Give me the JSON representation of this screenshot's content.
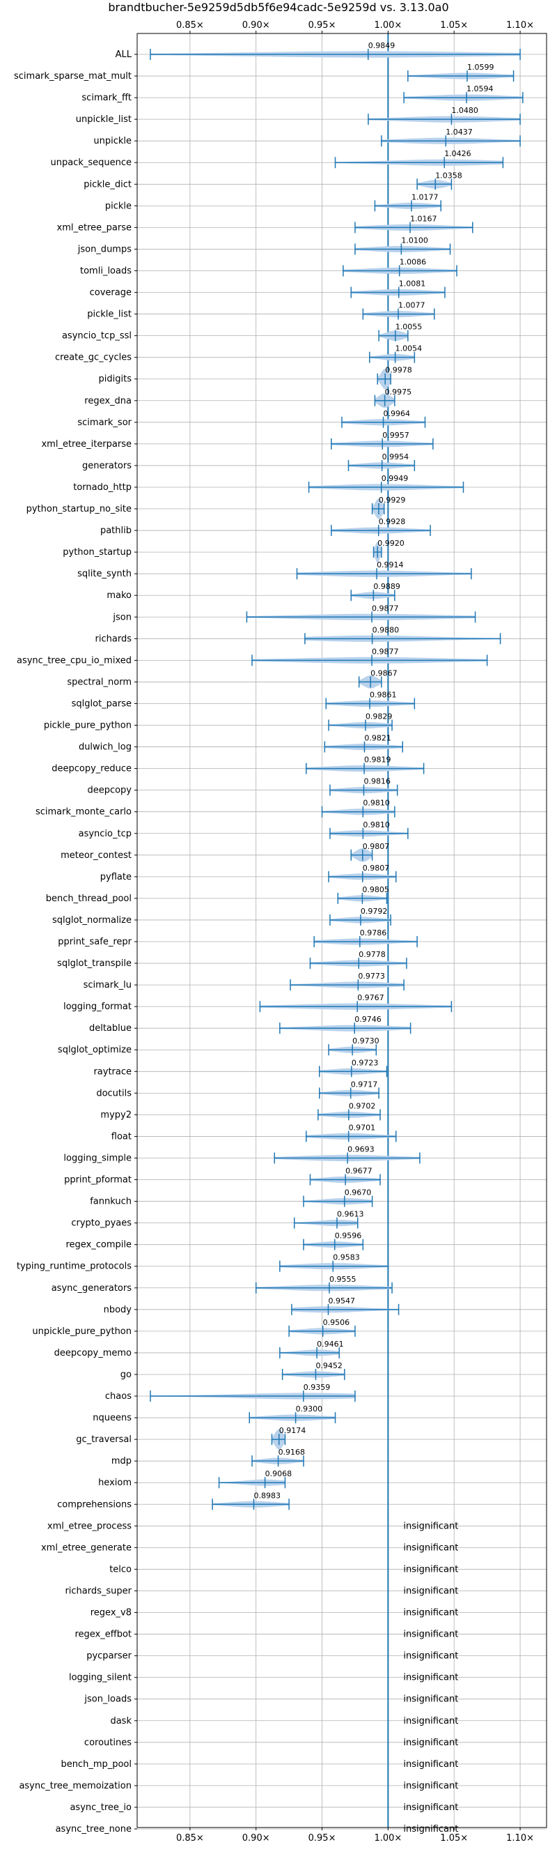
{
  "chart_data": {
    "type": "violin",
    "title": "brandtbucher-5e9259d5db5f6e94cadc-5e9259d vs. 3.13.0a0",
    "xlim": [
      0.81,
      1.12
    ],
    "xticks": [
      0.85,
      0.9,
      0.95,
      1.0,
      1.05,
      1.1
    ],
    "xtick_labels": [
      "0.85×",
      "0.90×",
      "0.95×",
      "1.00×",
      "1.05×",
      "1.10×"
    ],
    "reference_line": 1.0,
    "grid": true,
    "accent_color": "#1f77b4",
    "violin_color": "#b9d2ec",
    "insignificant_label": "insignificant",
    "benchmarks": [
      {
        "name": "ALL",
        "value": 0.9849,
        "label": "0.9849",
        "min": 0.82,
        "max": 1.1
      },
      {
        "name": "scimark_sparse_mat_mult",
        "value": 1.0599,
        "label": "1.0599",
        "min": 1.015,
        "max": 1.095
      },
      {
        "name": "scimark_fft",
        "value": 1.0594,
        "label": "1.0594",
        "min": 1.012,
        "max": 1.102
      },
      {
        "name": "unpickle_list",
        "value": 1.048,
        "label": "1.0480",
        "min": 0.985,
        "max": 1.1
      },
      {
        "name": "unpickle",
        "value": 1.0437,
        "label": "1.0437",
        "min": 0.995,
        "max": 1.1
      },
      {
        "name": "unpack_sequence",
        "value": 1.0426,
        "label": "1.0426",
        "min": 0.96,
        "max": 1.087
      },
      {
        "name": "pickle_dict",
        "value": 1.0358,
        "label": "1.0358",
        "min": 1.022,
        "max": 1.048
      },
      {
        "name": "pickle",
        "value": 1.0177,
        "label": "1.0177",
        "min": 0.99,
        "max": 1.04
      },
      {
        "name": "xml_etree_parse",
        "value": 1.0167,
        "label": "1.0167",
        "min": 0.975,
        "max": 1.064
      },
      {
        "name": "json_dumps",
        "value": 1.01,
        "label": "1.0100",
        "min": 0.975,
        "max": 1.047
      },
      {
        "name": "tomli_loads",
        "value": 1.0086,
        "label": "1.0086",
        "min": 0.966,
        "max": 1.052
      },
      {
        "name": "coverage",
        "value": 1.0081,
        "label": "1.0081",
        "min": 0.972,
        "max": 1.043
      },
      {
        "name": "pickle_list",
        "value": 1.0077,
        "label": "1.0077",
        "min": 0.981,
        "max": 1.035
      },
      {
        "name": "asyncio_tcp_ssl",
        "value": 1.0055,
        "label": "1.0055",
        "min": 0.993,
        "max": 1.015
      },
      {
        "name": "create_gc_cycles",
        "value": 1.0054,
        "label": "1.0054",
        "min": 0.986,
        "max": 1.02
      },
      {
        "name": "pidigits",
        "value": 0.9978,
        "label": "0.9978",
        "min": 0.992,
        "max": 1.002
      },
      {
        "name": "regex_dna",
        "value": 0.9975,
        "label": "0.9975",
        "min": 0.99,
        "max": 1.005
      },
      {
        "name": "scimark_sor",
        "value": 0.9964,
        "label": "0.9964",
        "min": 0.965,
        "max": 1.028
      },
      {
        "name": "xml_etree_iterparse",
        "value": 0.9957,
        "label": "0.9957",
        "min": 0.957,
        "max": 1.034
      },
      {
        "name": "generators",
        "value": 0.9954,
        "label": "0.9954",
        "min": 0.97,
        "max": 1.02
      },
      {
        "name": "tornado_http",
        "value": 0.9949,
        "label": "0.9949",
        "min": 0.94,
        "max": 1.057
      },
      {
        "name": "python_startup_no_site",
        "value": 0.9929,
        "label": "0.9929",
        "min": 0.988,
        "max": 0.997
      },
      {
        "name": "pathlib",
        "value": 0.9928,
        "label": "0.9928",
        "min": 0.957,
        "max": 1.032
      },
      {
        "name": "python_startup",
        "value": 0.992,
        "label": "0.9920",
        "min": 0.989,
        "max": 0.995
      },
      {
        "name": "sqlite_synth",
        "value": 0.9914,
        "label": "0.9914",
        "min": 0.931,
        "max": 1.063
      },
      {
        "name": "mako",
        "value": 0.9889,
        "label": "0.9889",
        "min": 0.972,
        "max": 1.005
      },
      {
        "name": "json",
        "value": 0.9877,
        "label": "0.9877",
        "min": 0.893,
        "max": 1.066
      },
      {
        "name": "richards",
        "value": 0.988,
        "label": "0.9880",
        "min": 0.937,
        "max": 1.085
      },
      {
        "name": "async_tree_cpu_io_mixed",
        "value": 0.9877,
        "label": "0.9877",
        "min": 0.897,
        "max": 1.075
      },
      {
        "name": "spectral_norm",
        "value": 0.9867,
        "label": "0.9867",
        "min": 0.978,
        "max": 0.995
      },
      {
        "name": "sqlglot_parse",
        "value": 0.9861,
        "label": "0.9861",
        "min": 0.953,
        "max": 1.02
      },
      {
        "name": "pickle_pure_python",
        "value": 0.9829,
        "label": "0.9829",
        "min": 0.955,
        "max": 1.003
      },
      {
        "name": "dulwich_log",
        "value": 0.9821,
        "label": "0.9821",
        "min": 0.952,
        "max": 1.011
      },
      {
        "name": "deepcopy_reduce",
        "value": 0.9819,
        "label": "0.9819",
        "min": 0.938,
        "max": 1.027
      },
      {
        "name": "deepcopy",
        "value": 0.9816,
        "label": "0.9816",
        "min": 0.956,
        "max": 1.007
      },
      {
        "name": "scimark_monte_carlo",
        "value": 0.981,
        "label": "0.9810",
        "min": 0.95,
        "max": 1.005
      },
      {
        "name": "asyncio_tcp",
        "value": 0.981,
        "label": "0.9810",
        "min": 0.956,
        "max": 1.015
      },
      {
        "name": "meteor_contest",
        "value": 0.9807,
        "label": "0.9807",
        "min": 0.972,
        "max": 0.988
      },
      {
        "name": "pyflate",
        "value": 0.9807,
        "label": "0.9807",
        "min": 0.955,
        "max": 1.006
      },
      {
        "name": "bench_thread_pool",
        "value": 0.9805,
        "label": "0.9805",
        "min": 0.962,
        "max": 0.999
      },
      {
        "name": "sqlglot_normalize",
        "value": 0.9792,
        "label": "0.9792",
        "min": 0.956,
        "max": 1.002
      },
      {
        "name": "pprint_safe_repr",
        "value": 0.9786,
        "label": "0.9786",
        "min": 0.944,
        "max": 1.022
      },
      {
        "name": "sqlglot_transpile",
        "value": 0.9778,
        "label": "0.9778",
        "min": 0.941,
        "max": 1.014
      },
      {
        "name": "scimark_lu",
        "value": 0.9773,
        "label": "0.9773",
        "min": 0.926,
        "max": 1.012
      },
      {
        "name": "logging_format",
        "value": 0.9767,
        "label": "0.9767",
        "min": 0.903,
        "max": 1.048
      },
      {
        "name": "deltablue",
        "value": 0.9746,
        "label": "0.9746",
        "min": 0.918,
        "max": 1.017
      },
      {
        "name": "sqlglot_optimize",
        "value": 0.973,
        "label": "0.9730",
        "min": 0.955,
        "max": 0.991
      },
      {
        "name": "raytrace",
        "value": 0.9723,
        "label": "0.9723",
        "min": 0.948,
        "max": 0.999
      },
      {
        "name": "docutils",
        "value": 0.9717,
        "label": "0.9717",
        "min": 0.948,
        "max": 0.993
      },
      {
        "name": "mypy2",
        "value": 0.9702,
        "label": "0.9702",
        "min": 0.947,
        "max": 0.994
      },
      {
        "name": "float",
        "value": 0.9701,
        "label": "0.9701",
        "min": 0.938,
        "max": 1.006
      },
      {
        "name": "logging_simple",
        "value": 0.9693,
        "label": "0.9693",
        "min": 0.914,
        "max": 1.024
      },
      {
        "name": "pprint_pformat",
        "value": 0.9677,
        "label": "0.9677",
        "min": 0.941,
        "max": 0.994
      },
      {
        "name": "fannkuch",
        "value": 0.967,
        "label": "0.9670",
        "min": 0.936,
        "max": 0.988
      },
      {
        "name": "crypto_pyaes",
        "value": 0.9613,
        "label": "0.9613",
        "min": 0.929,
        "max": 0.977
      },
      {
        "name": "regex_compile",
        "value": 0.9596,
        "label": "0.9596",
        "min": 0.936,
        "max": 0.981
      },
      {
        "name": "typing_runtime_protocols",
        "value": 0.9583,
        "label": "0.9583",
        "min": 0.918,
        "max": 1.0
      },
      {
        "name": "async_generators",
        "value": 0.9555,
        "label": "0.9555",
        "min": 0.9,
        "max": 1.003
      },
      {
        "name": "nbody",
        "value": 0.9547,
        "label": "0.9547",
        "min": 0.927,
        "max": 1.008
      },
      {
        "name": "unpickle_pure_python",
        "value": 0.9506,
        "label": "0.9506",
        "min": 0.925,
        "max": 0.975
      },
      {
        "name": "deepcopy_memo",
        "value": 0.9461,
        "label": "0.9461",
        "min": 0.918,
        "max": 0.963
      },
      {
        "name": "go",
        "value": 0.9452,
        "label": "0.9452",
        "min": 0.92,
        "max": 0.967
      },
      {
        "name": "chaos",
        "value": 0.9359,
        "label": "0.9359",
        "min": 0.82,
        "max": 0.975
      },
      {
        "name": "nqueens",
        "value": 0.93,
        "label": "0.9300",
        "min": 0.895,
        "max": 0.96
      },
      {
        "name": "gc_traversal",
        "value": 0.9174,
        "label": "0.9174",
        "min": 0.912,
        "max": 0.922
      },
      {
        "name": "mdp",
        "value": 0.9168,
        "label": "0.9168",
        "min": 0.897,
        "max": 0.936
      },
      {
        "name": "hexiom",
        "value": 0.9068,
        "label": "0.9068",
        "min": 0.872,
        "max": 0.922
      },
      {
        "name": "comprehensions",
        "value": 0.8983,
        "label": "0.8983",
        "min": 0.867,
        "max": 0.925
      },
      {
        "name": "xml_etree_process",
        "value": null
      },
      {
        "name": "xml_etree_generate",
        "value": null
      },
      {
        "name": "telco",
        "value": null
      },
      {
        "name": "richards_super",
        "value": null
      },
      {
        "name": "regex_v8",
        "value": null
      },
      {
        "name": "regex_effbot",
        "value": null
      },
      {
        "name": "pycparser",
        "value": null
      },
      {
        "name": "logging_silent",
        "value": null
      },
      {
        "name": "json_loads",
        "value": null
      },
      {
        "name": "dask",
        "value": null
      },
      {
        "name": "coroutines",
        "value": null
      },
      {
        "name": "bench_mp_pool",
        "value": null
      },
      {
        "name": "async_tree_memoization",
        "value": null
      },
      {
        "name": "async_tree_io",
        "value": null
      },
      {
        "name": "async_tree_none",
        "value": null
      }
    ]
  }
}
